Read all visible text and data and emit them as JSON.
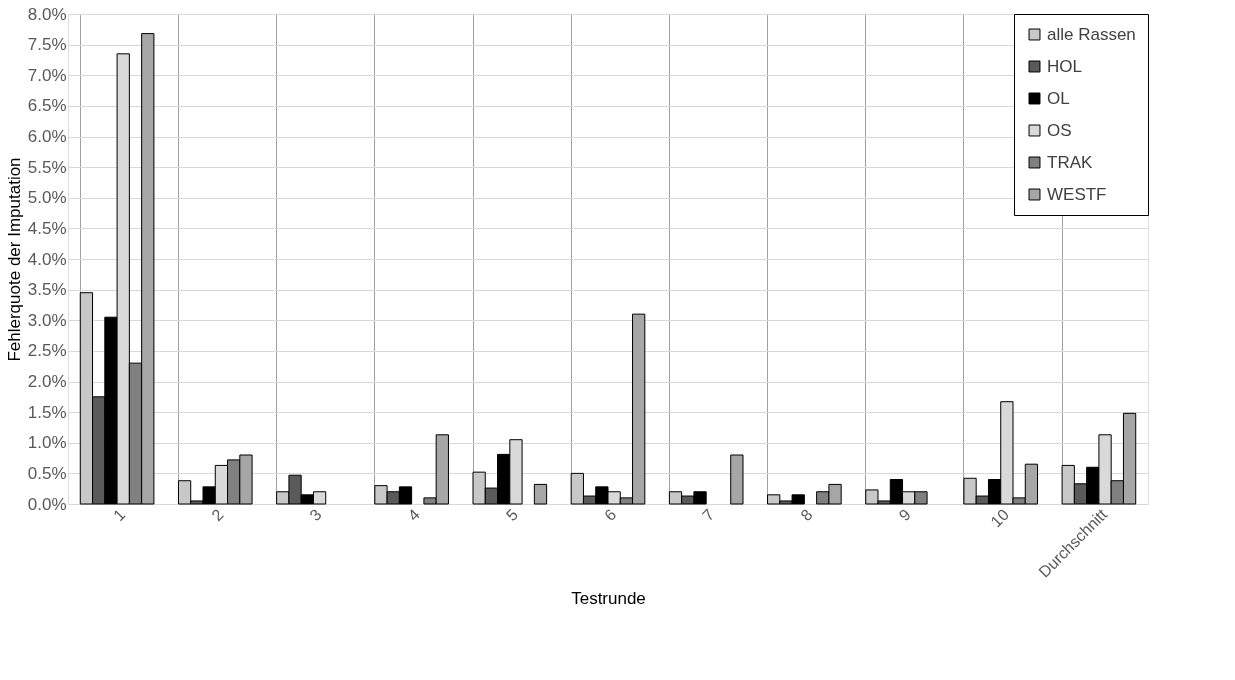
{
  "chart_data": {
    "type": "bar",
    "xlabel": "Testrunde",
    "ylabel": "Fehlerquote der Imputation",
    "categories": [
      "1",
      "2",
      "3",
      "4",
      "5",
      "6",
      "7",
      "8",
      "9",
      "10",
      "Durchschnitt"
    ],
    "series": [
      {
        "name": "alle Rassen",
        "color": "#c8c8c8",
        "values": [
          3.45,
          0.38,
          0.2,
          0.3,
          0.52,
          0.5,
          0.2,
          0.15,
          0.23,
          0.42,
          0.63
        ]
      },
      {
        "name": "HOL",
        "color": "#5a5a5a",
        "values": [
          1.75,
          0.05,
          0.47,
          0.2,
          0.26,
          0.13,
          0.13,
          0.05,
          0.05,
          0.13,
          0.33
        ]
      },
      {
        "name": "OL",
        "color": "#000000",
        "values": [
          3.05,
          0.28,
          0.15,
          0.28,
          0.81,
          0.28,
          0.2,
          0.15,
          0.4,
          0.4,
          0.6
        ]
      },
      {
        "name": "OS",
        "color": "#d9d9d9",
        "values": [
          7.35,
          0.63,
          0.2,
          null,
          1.05,
          0.2,
          null,
          null,
          0.2,
          1.67,
          1.13
        ]
      },
      {
        "name": "TRAK",
        "color": "#808080",
        "values": [
          2.3,
          0.72,
          null,
          0.1,
          null,
          0.1,
          null,
          0.2,
          0.2,
          0.1,
          0.38
        ]
      },
      {
        "name": "WESTF",
        "color": "#a6a6a6",
        "values": [
          7.68,
          0.8,
          null,
          1.13,
          0.32,
          3.1,
          0.8,
          0.32,
          null,
          0.65,
          1.48
        ]
      }
    ],
    "ylim": [
      0,
      8
    ],
    "yticks": [
      {
        "value": 0,
        "label": "0.0%"
      },
      {
        "value": 0.5,
        "label": "0.5%"
      },
      {
        "value": 1,
        "label": "1.0%"
      },
      {
        "value": 1.5,
        "label": "1.5%"
      },
      {
        "value": 2,
        "label": "2.0%"
      },
      {
        "value": 2.5,
        "label": "2.5%"
      },
      {
        "value": 3,
        "label": "3.0%"
      },
      {
        "value": 3.5,
        "label": "3.5%"
      },
      {
        "value": 4,
        "label": "4.0%"
      },
      {
        "value": 4.5,
        "label": "4.5%"
      },
      {
        "value": 5,
        "label": "5.0%"
      },
      {
        "value": 5.5,
        "label": "5.5%"
      },
      {
        "value": 6,
        "label": "6.0%"
      },
      {
        "value": 6.5,
        "label": "6.5%"
      },
      {
        "value": 7,
        "label": "7.0%"
      },
      {
        "value": 7.5,
        "label": "7.5%"
      },
      {
        "value": 8,
        "label": "8.0%"
      }
    ],
    "grid": true,
    "legend": "top right"
  }
}
